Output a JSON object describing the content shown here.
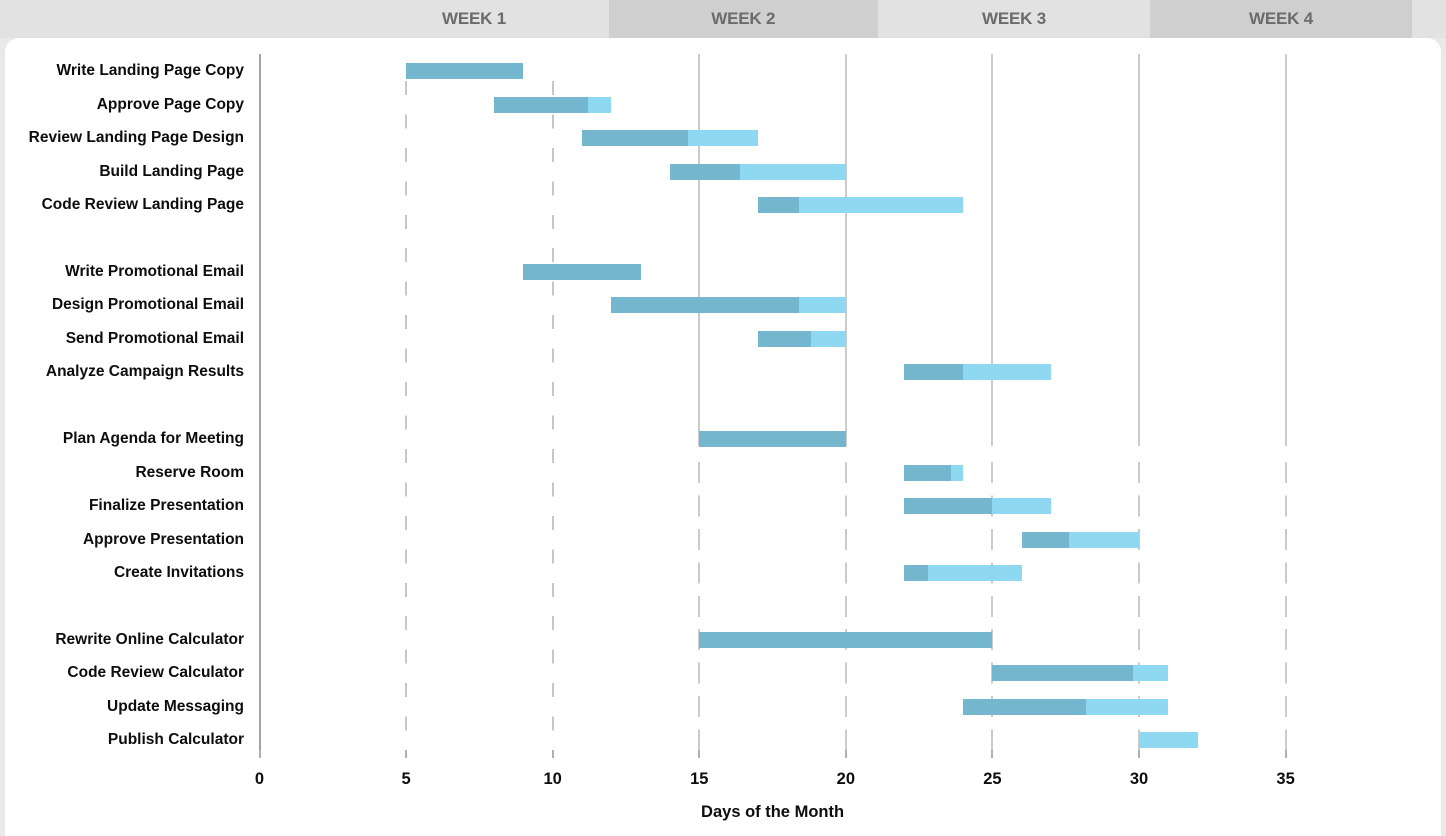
{
  "week_header": {
    "labels": [
      "WEEK 1",
      "WEEK 2",
      "WEEK 3",
      "WEEK 4"
    ]
  },
  "chart_data": {
    "type": "bar",
    "subtype": "gantt",
    "title": "",
    "xlabel": "Days of the Month",
    "ylabel": "",
    "x_ticks": [
      0,
      5,
      10,
      15,
      20,
      25,
      30,
      35
    ],
    "xlim": [
      0,
      40.5
    ],
    "grid": "vertical-dashed",
    "bar_colors": {
      "complete": "#74b6cd",
      "remaining": "#8fd8f2"
    },
    "groups": [
      {
        "tasks": [
          {
            "name": "Write Landing Page Copy",
            "start": 5,
            "end": 9,
            "pct_complete": 100
          },
          {
            "name": "Approve Page Copy",
            "start": 8,
            "end": 12,
            "pct_complete": 80
          },
          {
            "name": "Review Landing Page Design",
            "start": 11,
            "end": 17,
            "pct_complete": 60
          },
          {
            "name": "Build Landing Page",
            "start": 14,
            "end": 20,
            "pct_complete": 40
          },
          {
            "name": "Code Review Landing Page",
            "start": 17,
            "end": 24,
            "pct_complete": 20
          }
        ]
      },
      {
        "tasks": [
          {
            "name": "Write Promotional Email",
            "start": 9,
            "end": 13,
            "pct_complete": 100
          },
          {
            "name": "Design Promotional Email",
            "start": 12,
            "end": 20,
            "pct_complete": 80
          },
          {
            "name": "Send Promotional Email",
            "start": 17,
            "end": 20,
            "pct_complete": 60
          },
          {
            "name": "Analyze Campaign Results",
            "start": 22,
            "end": 27,
            "pct_complete": 40
          }
        ]
      },
      {
        "tasks": [
          {
            "name": "Plan Agenda for Meeting",
            "start": 15,
            "end": 20,
            "pct_complete": 100
          },
          {
            "name": "Reserve Room",
            "start": 22,
            "end": 24,
            "pct_complete": 80
          },
          {
            "name": "Finalize Presentation",
            "start": 22,
            "end": 27,
            "pct_complete": 60
          },
          {
            "name": "Approve Presentation",
            "start": 26,
            "end": 30,
            "pct_complete": 40
          },
          {
            "name": "Create Invitations",
            "start": 22,
            "end": 26,
            "pct_complete": 20
          }
        ]
      },
      {
        "tasks": [
          {
            "name": "Rewrite Online Calculator",
            "start": 15,
            "end": 25,
            "pct_complete": 100
          },
          {
            "name": "Code Review Calculator",
            "start": 25,
            "end": 31,
            "pct_complete": 80
          },
          {
            "name": "Update Messaging",
            "start": 24,
            "end": 31,
            "pct_complete": 60
          },
          {
            "name": "Publish Calculator",
            "start": 30,
            "end": 32,
            "pct_complete": 0
          }
        ]
      }
    ]
  }
}
